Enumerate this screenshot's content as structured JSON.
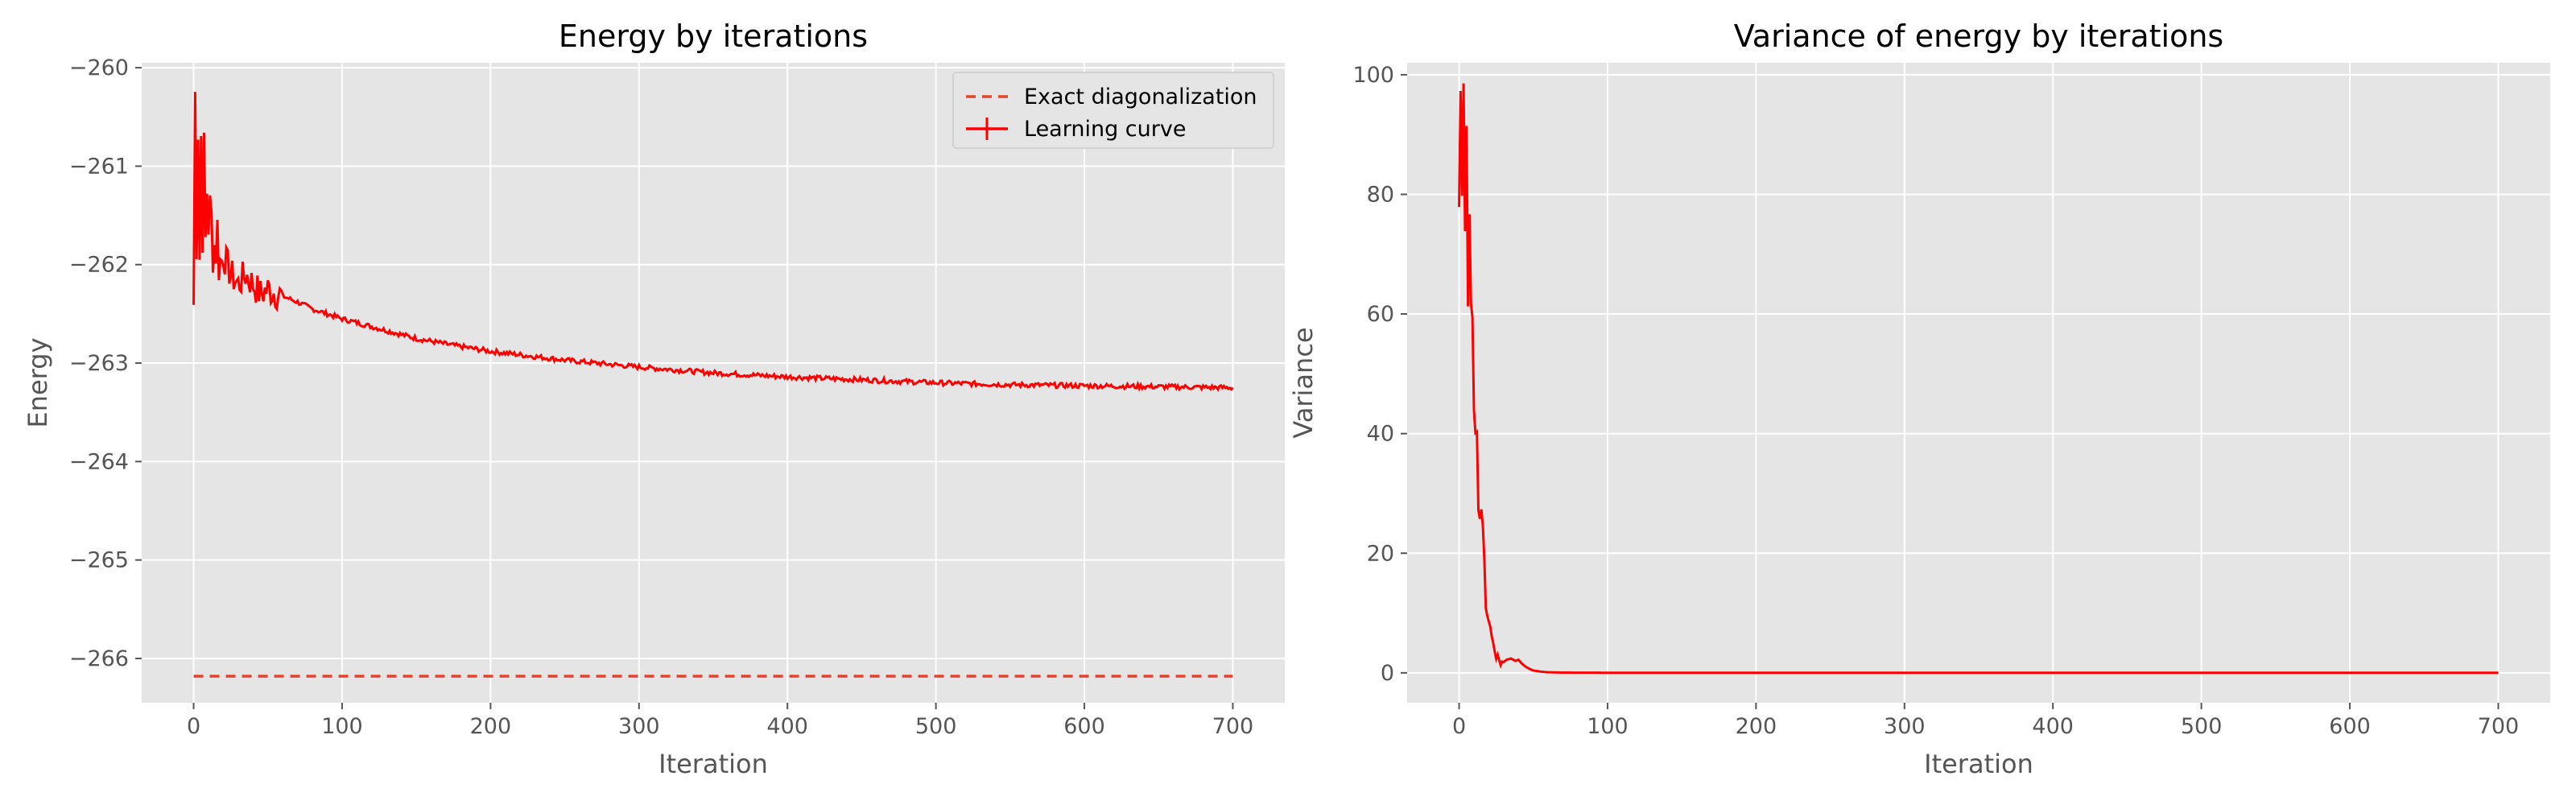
{
  "chart_data": [
    {
      "type": "line",
      "title": "Energy by iterations",
      "xlabel": "Iteration",
      "ylabel": "Energy",
      "xlim": [
        -35,
        735
      ],
      "ylim": [
        -266.45,
        -259.95
      ],
      "xticks": [
        0,
        100,
        200,
        300,
        400,
        500,
        600,
        700
      ],
      "yticks": [
        -266,
        -265,
        -264,
        -263,
        -262,
        -261,
        -260
      ],
      "xtick_labels": [
        "0",
        "100",
        "200",
        "300",
        "400",
        "500",
        "600",
        "700"
      ],
      "ytick_labels": [
        "−266",
        "−265",
        "−264",
        "−263",
        "−262",
        "−261",
        "−260"
      ],
      "grid": true,
      "legend_position": "top-right",
      "series": [
        {
          "name": "Exact diagonalization",
          "style": "dashed",
          "color": "#e8402a",
          "x": [
            0,
            700
          ],
          "y": [
            -266.18,
            -266.18
          ]
        },
        {
          "name": "Learning curve",
          "style": "solid-errorbar",
          "color": "#ff0000",
          "x": [
            0,
            1,
            2,
            3,
            4,
            5,
            6,
            7,
            8,
            9,
            10,
            12,
            14,
            16,
            18,
            20,
            25,
            30,
            35,
            40,
            45,
            50,
            60,
            70,
            80,
            100,
            125,
            150,
            175,
            200,
            250,
            300,
            350,
            400,
            450,
            500,
            550,
            600,
            650,
            700
          ],
          "y": [
            -262.4,
            -260.3,
            -261.6,
            -260.5,
            -261.9,
            -260.7,
            -261.5,
            -261.0,
            -261.8,
            -261.2,
            -261.5,
            -261.6,
            -261.8,
            -261.7,
            -262.0,
            -261.9,
            -262.1,
            -262.2,
            -262.1,
            -262.2,
            -262.3,
            -262.25,
            -262.32,
            -262.38,
            -262.45,
            -262.55,
            -262.65,
            -262.75,
            -262.82,
            -262.88,
            -262.97,
            -263.04,
            -263.1,
            -263.14,
            -263.17,
            -263.2,
            -263.22,
            -263.23,
            -263.24,
            -263.25
          ]
        }
      ]
    },
    {
      "type": "line",
      "title": "Variance of energy by iterations",
      "xlabel": "Iteration",
      "ylabel": "Variance",
      "xlim": [
        -35,
        735
      ],
      "ylim": [
        -5,
        102
      ],
      "xticks": [
        0,
        100,
        200,
        300,
        400,
        500,
        600,
        700
      ],
      "yticks": [
        0,
        20,
        40,
        60,
        80,
        100
      ],
      "xtick_labels": [
        "0",
        "100",
        "200",
        "300",
        "400",
        "500",
        "600",
        "700"
      ],
      "ytick_labels": [
        "0",
        "20",
        "40",
        "60",
        "80",
        "100"
      ],
      "grid": true,
      "series": [
        {
          "style": "solid-errorbar",
          "color": "#ff0000",
          "x": [
            0,
            1,
            2,
            3,
            4,
            5,
            6,
            7,
            8,
            9,
            10,
            11,
            12,
            13,
            14,
            15,
            16,
            17,
            18,
            19,
            20,
            22,
            24,
            26,
            28,
            30,
            32,
            35,
            38,
            40,
            42,
            45,
            48,
            50,
            55,
            60,
            70,
            80,
            100,
            150,
            200,
            300,
            400,
            500,
            600,
            700
          ],
          "y": [
            78,
            98,
            80,
            95,
            72,
            88,
            65,
            74,
            58,
            62,
            47,
            44,
            38,
            31,
            26,
            29,
            21,
            17,
            14,
            11,
            9,
            6,
            4,
            2.5,
            1.8,
            1.8,
            2.2,
            2.4,
            2.0,
            2.2,
            1.6,
            1.0,
            0.6,
            0.4,
            0.2,
            0.1,
            0.05,
            0.03,
            0.02,
            0.01,
            0.01,
            0.01,
            0.01,
            0.01,
            0.01,
            0.01
          ]
        }
      ]
    }
  ]
}
